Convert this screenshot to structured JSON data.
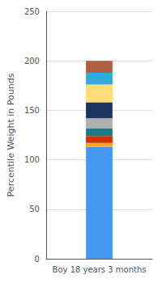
{
  "chart_data": {
    "type": "bar",
    "stacked": true,
    "ylabel": "Percentile Weight in Pounds",
    "categories": [
      "Boy 18 years 3 months"
    ],
    "series": [
      {
        "color": "#4499ee",
        "values": [
          113
        ]
      },
      {
        "color": "#f5a623",
        "values": [
          4
        ]
      },
      {
        "color": "#cc3300",
        "values": [
          7
        ]
      },
      {
        "color": "#1a7a8a",
        "values": [
          8
        ]
      },
      {
        "color": "#b0b0b0",
        "values": [
          10
        ]
      },
      {
        "color": "#1c3560",
        "values": [
          16
        ]
      },
      {
        "color": "#ffdd77",
        "values": [
          18
        ]
      },
      {
        "color": "#33aadd",
        "values": [
          12
        ]
      },
      {
        "color": "#b06040",
        "values": [
          12
        ]
      }
    ],
    "ylim": [
      0,
      250
    ],
    "yticks": [
      0,
      50,
      100,
      150,
      200,
      250
    ],
    "grid": true
  }
}
